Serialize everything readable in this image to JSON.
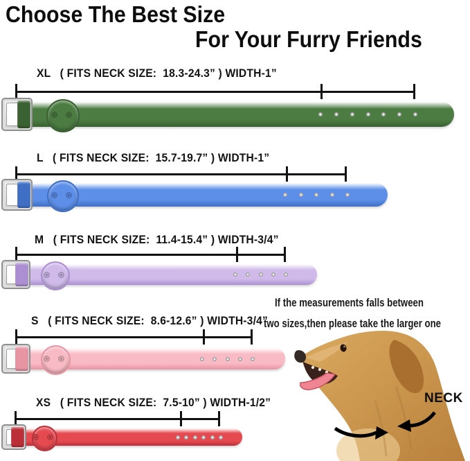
{
  "title": {
    "line1": "Choose The Best Size",
    "line2": "For Your Furry Friends"
  },
  "sizes": [
    {
      "size": "XL",
      "label": "XL   ( FITS NECK SIZE:  18.3-24.3” ) WIDTH-1”",
      "fits_neck": "18.3-24.3\"",
      "width": "1\"",
      "collar_color": "#4c7c42",
      "collar_color_dark": "#3a6132",
      "holes": 7
    },
    {
      "size": "L",
      "label": "L   ( FITS NECK SIZE:  15.7-19.7” ) WIDTH-1”",
      "fits_neck": "15.7-19.7\"",
      "width": "1\"",
      "collar_color": "#5d8fe9",
      "collar_color_dark": "#3f6fc4",
      "holes": 5
    },
    {
      "size": "M",
      "label": "M   ( FITS NECK SIZE:  11.4-15.4” ) WIDTH-3/4”",
      "fits_neck": "11.4-15.4\"",
      "width": "3/4\"",
      "collar_color": "#cfbae9",
      "collar_color_dark": "#ab8fd2",
      "holes": 5
    },
    {
      "size": "S",
      "label": "S   ( FITS NECK SIZE:  8.6-12.6” ) WIDTH-3/4”",
      "fits_neck": "8.6-12.6\"",
      "width": "3/4\"",
      "collar_color": "#f8bac4",
      "collar_color_dark": "#e794a3",
      "holes": 5
    },
    {
      "size": "XS",
      "label": "XS   ( FITS NECK SIZE:  7.5-10” ) WIDTH-1/2”",
      "fits_neck": "7.5-10\"",
      "width": "1/2\"",
      "collar_color": "#e54a50",
      "collar_color_dark": "#bd2f38",
      "holes": 6
    }
  ],
  "note": {
    "line1": "If the measurements falls between",
    "line2": "two sizes,then please take the larger one"
  },
  "neck_label": "NECK",
  "colors": {
    "dimension_line": "#111111",
    "buckle_silver": "#c9c9c9",
    "dog_fur": "#cf9a55",
    "dog_fur_dark": "#a86f2e",
    "tongue": "#ef8593",
    "arrow": "#000000"
  }
}
